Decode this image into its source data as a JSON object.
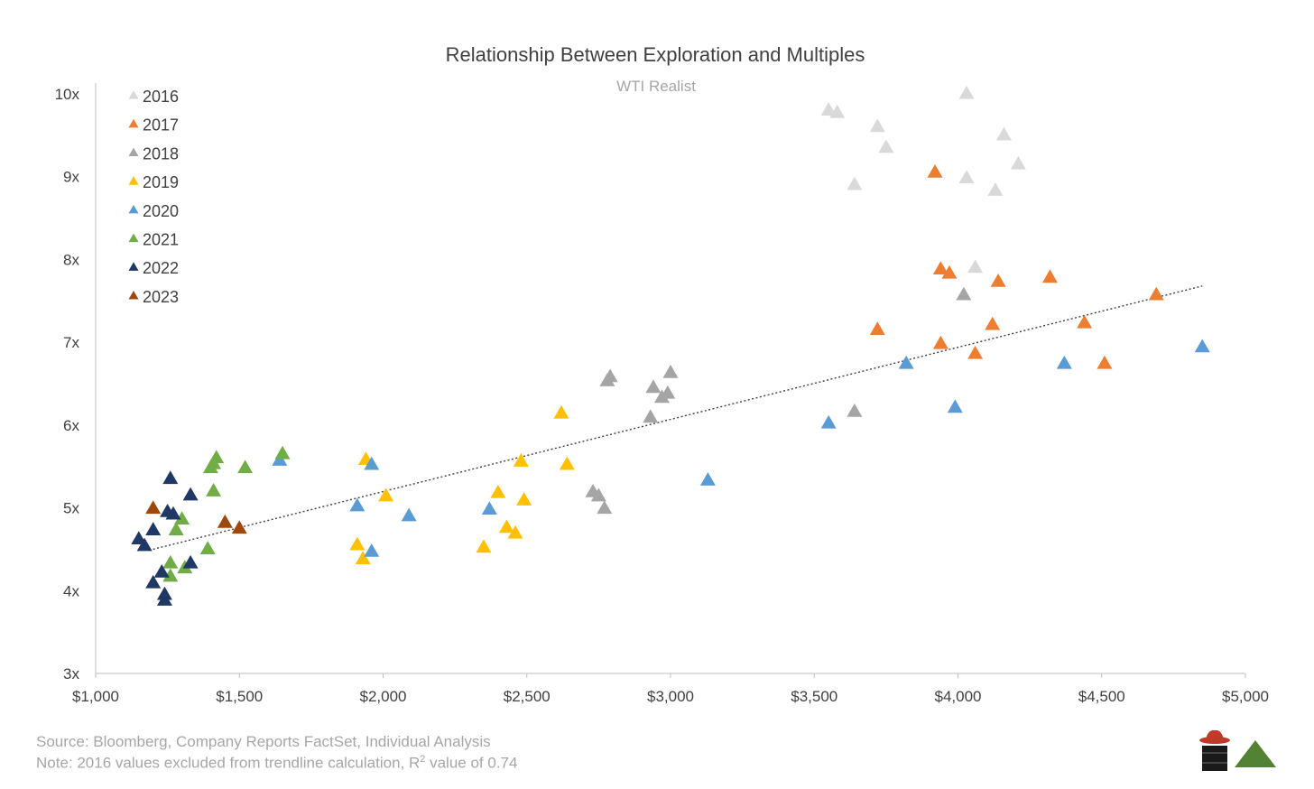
{
  "chart_data": {
    "type": "scatter",
    "title": "Relationship Between Exploration and Multiples",
    "subtitle": "WTI Realist",
    "xlabel": "",
    "ylabel": "",
    "xlim": [
      1000,
      5000
    ],
    "ylim": [
      3,
      10
    ],
    "x_ticks": [
      1000,
      1500,
      2000,
      2500,
      3000,
      3500,
      4000,
      4500,
      5000
    ],
    "x_tick_labels": [
      "$1,000",
      "$1,500",
      "$2,000",
      "$2,500",
      "$3,000",
      "$3,500",
      "$4,000",
      "$4,500",
      "$5,000"
    ],
    "y_ticks": [
      3,
      4,
      5,
      6,
      7,
      8,
      9,
      10
    ],
    "y_tick_labels": [
      "3x",
      "4x",
      "5x",
      "6x",
      "7x",
      "8x",
      "9x",
      "10x"
    ],
    "grid": false,
    "legend_position": "top-left",
    "marker": "triangle",
    "series": [
      {
        "name": "2016",
        "color": "#d9d9d9",
        "points": [
          [
            3550,
            9.8
          ],
          [
            3580,
            9.77
          ],
          [
            3720,
            9.6
          ],
          [
            3750,
            9.35
          ],
          [
            3640,
            8.9
          ],
          [
            4030,
            10.0
          ],
          [
            4160,
            9.5
          ],
          [
            4210,
            9.15
          ],
          [
            4030,
            8.98
          ],
          [
            4130,
            8.83
          ],
          [
            4060,
            7.9
          ]
        ]
      },
      {
        "name": "2017",
        "color": "#ed7d31",
        "points": [
          [
            3920,
            9.05
          ],
          [
            3940,
            7.88
          ],
          [
            3970,
            7.83
          ],
          [
            4140,
            7.73
          ],
          [
            4320,
            7.78
          ],
          [
            4690,
            7.57
          ],
          [
            3720,
            7.15
          ],
          [
            3940,
            6.98
          ],
          [
            4120,
            7.21
          ],
          [
            4440,
            7.23
          ],
          [
            4060,
            6.86
          ],
          [
            4510,
            6.74
          ]
        ]
      },
      {
        "name": "2018",
        "color": "#a5a5a5",
        "points": [
          [
            4020,
            7.57
          ],
          [
            3000,
            6.63
          ],
          [
            2790,
            6.58
          ],
          [
            2780,
            6.53
          ],
          [
            2940,
            6.45
          ],
          [
            2990,
            6.38
          ],
          [
            2970,
            6.33
          ],
          [
            2930,
            6.09
          ],
          [
            3640,
            6.16
          ],
          [
            2730,
            5.19
          ],
          [
            2750,
            5.14
          ],
          [
            2770,
            4.99
          ]
        ]
      },
      {
        "name": "2019",
        "color": "#ffc000",
        "points": [
          [
            2620,
            6.14
          ],
          [
            1940,
            5.58
          ],
          [
            2480,
            5.56
          ],
          [
            2640,
            5.52
          ],
          [
            2010,
            5.14
          ],
          [
            2400,
            5.18
          ],
          [
            2490,
            5.09
          ],
          [
            2430,
            4.76
          ],
          [
            2460,
            4.69
          ],
          [
            1910,
            4.55
          ],
          [
            2350,
            4.52
          ],
          [
            1930,
            4.38
          ]
        ]
      },
      {
        "name": "2020",
        "color": "#5b9bd5",
        "points": [
          [
            4850,
            6.94
          ],
          [
            3820,
            6.74
          ],
          [
            4370,
            6.74
          ],
          [
            3990,
            6.21
          ],
          [
            3550,
            6.02
          ],
          [
            3130,
            5.33
          ],
          [
            1640,
            5.57
          ],
          [
            1960,
            5.52
          ],
          [
            1910,
            5.02
          ],
          [
            2370,
            4.98
          ],
          [
            2090,
            4.9
          ],
          [
            1960,
            4.47
          ]
        ]
      },
      {
        "name": "2021",
        "color": "#70ad47",
        "points": [
          [
            1650,
            5.65
          ],
          [
            1420,
            5.6
          ],
          [
            1410,
            5.53
          ],
          [
            1400,
            5.48
          ],
          [
            1520,
            5.48
          ],
          [
            1410,
            5.2
          ],
          [
            1300,
            4.86
          ],
          [
            1280,
            4.73
          ],
          [
            1390,
            4.5
          ],
          [
            1260,
            4.33
          ],
          [
            1310,
            4.27
          ],
          [
            1260,
            4.17
          ]
        ]
      },
      {
        "name": "2022",
        "color": "#203864",
        "points": [
          [
            1260,
            5.35
          ],
          [
            1330,
            5.15
          ],
          [
            1250,
            4.95
          ],
          [
            1270,
            4.92
          ],
          [
            1200,
            4.73
          ],
          [
            1150,
            4.62
          ],
          [
            1170,
            4.54
          ],
          [
            1330,
            4.33
          ],
          [
            1230,
            4.22
          ],
          [
            1200,
            4.09
          ],
          [
            1240,
            3.95
          ],
          [
            1240,
            3.88
          ]
        ]
      },
      {
        "name": "2023",
        "color": "#9e480e",
        "points": [
          [
            1200,
            4.99
          ],
          [
            1450,
            4.82
          ],
          [
            1500,
            4.75
          ]
        ]
      }
    ],
    "trendline": {
      "style": "dotted",
      "color": "#404040",
      "x_range": [
        1200,
        4850
      ],
      "y_at_start": 4.5,
      "y_at_end": 7.68
    }
  },
  "footer": {
    "source": "Source: Bloomberg, Company Reports FactSet, Individual Analysis",
    "note_prefix": "Note: 2016 values excluded from trendline calculation, R",
    "note_sup": "2",
    "note_suffix": " value of 0.74"
  }
}
